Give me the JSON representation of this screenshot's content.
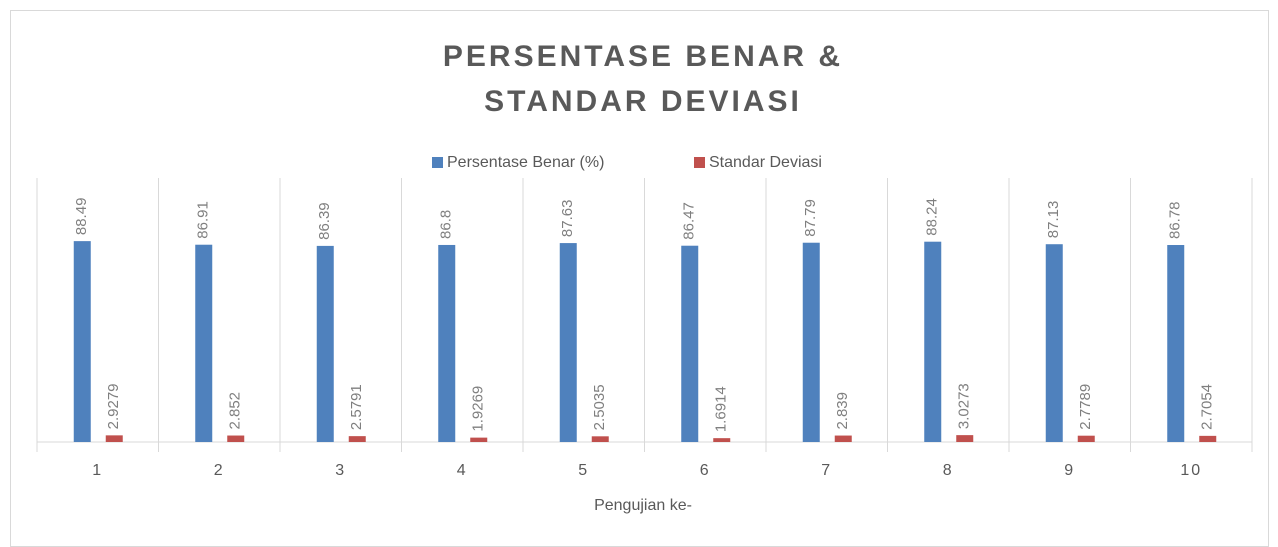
{
  "chart_data": {
    "type": "bar",
    "title": [
      "PERSENTASE BENAR &",
      "STANDAR DEVIASI"
    ],
    "x_label": "Pengujian ke-",
    "categories": [
      "1",
      "2",
      "3",
      "4",
      "5",
      "6",
      "7",
      "8",
      "9",
      "10"
    ],
    "series": [
      {
        "name": "Persentase Benar (%)",
        "color": "#4f81bd",
        "values": [
          88.49,
          86.91,
          86.39,
          86.8,
          87.63,
          86.47,
          87.79,
          88.24,
          87.13,
          86.78
        ]
      },
      {
        "name": "Standar Deviasi",
        "color": "#c0504d",
        "values": [
          2.9279,
          2.852,
          2.5791,
          1.9269,
          2.5035,
          1.6914,
          2.839,
          3.0273,
          2.7789,
          2.7054
        ]
      }
    ],
    "ylim": [
      0,
      100
    ]
  }
}
